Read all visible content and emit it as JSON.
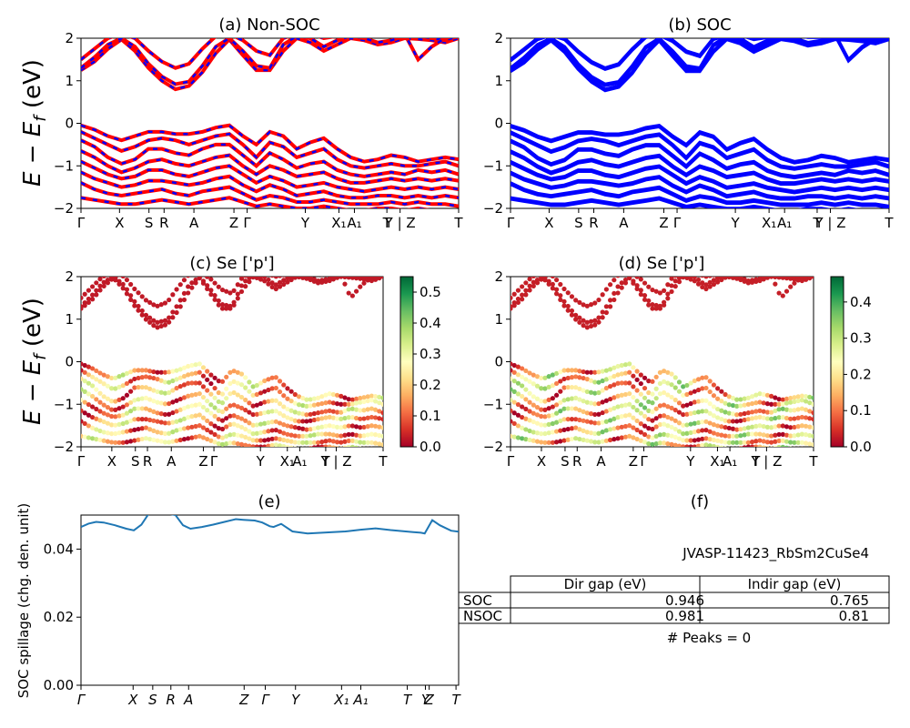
{
  "chart_data": [
    {
      "panel": "a",
      "type": "line",
      "title": "(a) Non-SOC",
      "ylabel": "E − E_f (eV)",
      "ylim": [
        -2,
        2
      ],
      "yticks": [
        2,
        1,
        0,
        -1,
        -2
      ],
      "kpath": [
        {
          "label": "Γ",
          "pos": 0.0
        },
        {
          "label": "X",
          "pos": 0.102
        },
        {
          "label": "S",
          "pos": 0.18
        },
        {
          "label": "R",
          "pos": 0.22
        },
        {
          "label": "A",
          "pos": 0.299
        },
        {
          "label": "Z",
          "pos": 0.405
        },
        {
          "label": "Γ",
          "pos": 0.44
        },
        {
          "label": "Y",
          "pos": 0.594
        },
        {
          "label": "X₁",
          "pos": 0.683
        },
        {
          "label": "A₁",
          "pos": 0.724
        },
        {
          "label": "T",
          "pos": 0.81
        },
        {
          "label": "Y | Z",
          "pos": 0.845
        },
        {
          "label": "T",
          "pos": 1.0
        }
      ],
      "series": [
        {
          "colors": [
            "#ff0000",
            "#0000ff"
          ],
          "style": "overlaid dashed"
        }
      ],
      "conduction_bands": [
        [
          1.25,
          1.45,
          1.75,
          1.97,
          1.7,
          1.3,
          1.0,
          0.8,
          0.88,
          1.2,
          1.65,
          1.97,
          1.6,
          1.25,
          1.25,
          1.7,
          2.0,
          1.9,
          1.7,
          1.85,
          2.0,
          1.95,
          1.85,
          1.9,
          2.0,
          1.98,
          1.95,
          1.9,
          2.0
        ],
        [
          1.3,
          1.55,
          1.85,
          2.0,
          1.8,
          1.4,
          1.1,
          0.92,
          0.98,
          1.35,
          1.8,
          2.0,
          1.7,
          1.35,
          1.3,
          1.85,
          2.05,
          2.0,
          1.8,
          1.95,
          2.05,
          2.0,
          1.9,
          1.95,
          2.05,
          2.05,
          2.0,
          1.95,
          2.05
        ],
        [
          1.5,
          1.75,
          2.0,
          2.1,
          2.0,
          1.7,
          1.45,
          1.3,
          1.4,
          1.75,
          2.05,
          2.1,
          1.95,
          1.7,
          1.6,
          2.0,
          2.1,
          2.1,
          2.0,
          2.05,
          2.1,
          2.1,
          2.05,
          2.05,
          2.1,
          1.5,
          1.8,
          2.0,
          2.1
        ]
      ],
      "valence_bands": [
        [
          -0.05,
          -0.15,
          -0.3,
          -0.4,
          -0.3,
          -0.2,
          -0.2,
          -0.25,
          -0.25,
          -0.2,
          -0.1,
          -0.05,
          -0.3,
          -0.5,
          -0.2,
          -0.3,
          -0.6,
          -0.45,
          -0.35,
          -0.6,
          -0.8,
          -0.9,
          -0.85,
          -0.75,
          -0.8,
          -0.9,
          -0.85,
          -0.8,
          -0.85
        ],
        [
          -0.2,
          -0.35,
          -0.5,
          -0.65,
          -0.55,
          -0.4,
          -0.35,
          -0.4,
          -0.5,
          -0.4,
          -0.3,
          -0.25,
          -0.5,
          -0.8,
          -0.45,
          -0.55,
          -0.8,
          -0.7,
          -0.6,
          -0.85,
          -1.0,
          -1.05,
          -1.0,
          -0.95,
          -1.0,
          -1.0,
          -0.95,
          -0.9,
          -1.0
        ],
        [
          -0.4,
          -0.55,
          -0.8,
          -0.95,
          -0.85,
          -0.6,
          -0.6,
          -0.7,
          -0.75,
          -0.6,
          -0.5,
          -0.5,
          -0.75,
          -1.0,
          -0.7,
          -0.85,
          -1.05,
          -0.95,
          -0.9,
          -1.1,
          -1.2,
          -1.25,
          -1.2,
          -1.15,
          -1.2,
          -1.1,
          -1.15,
          -1.1,
          -1.2
        ],
        [
          -0.65,
          -0.8,
          -1.0,
          -1.15,
          -1.05,
          -0.9,
          -0.85,
          -0.95,
          -1.0,
          -0.9,
          -0.8,
          -0.75,
          -1.0,
          -1.2,
          -1.0,
          -1.1,
          -1.25,
          -1.2,
          -1.15,
          -1.3,
          -1.4,
          -1.4,
          -1.35,
          -1.3,
          -1.35,
          -1.3,
          -1.35,
          -1.3,
          -1.35
        ],
        [
          -0.9,
          -1.05,
          -1.2,
          -1.3,
          -1.25,
          -1.1,
          -1.1,
          -1.2,
          -1.25,
          -1.15,
          -1.05,
          -1.0,
          -1.2,
          -1.4,
          -1.25,
          -1.35,
          -1.5,
          -1.45,
          -1.4,
          -1.5,
          -1.55,
          -1.6,
          -1.55,
          -1.5,
          -1.55,
          -1.5,
          -1.55,
          -1.5,
          -1.55
        ],
        [
          -1.15,
          -1.3,
          -1.4,
          -1.5,
          -1.45,
          -1.35,
          -1.35,
          -1.4,
          -1.45,
          -1.4,
          -1.3,
          -1.25,
          -1.45,
          -1.6,
          -1.45,
          -1.55,
          -1.7,
          -1.65,
          -1.6,
          -1.7,
          -1.75,
          -1.75,
          -1.7,
          -1.7,
          -1.75,
          -1.7,
          -1.75,
          -1.7,
          -1.75
        ],
        [
          -1.4,
          -1.55,
          -1.65,
          -1.7,
          -1.65,
          -1.6,
          -1.55,
          -1.65,
          -1.7,
          -1.6,
          -1.55,
          -1.5,
          -1.65,
          -1.8,
          -1.7,
          -1.75,
          -1.85,
          -1.85,
          -1.8,
          -1.85,
          -1.9,
          -1.9,
          -1.9,
          -1.85,
          -1.9,
          -1.85,
          -1.9,
          -1.9,
          -1.95
        ],
        [
          -1.75,
          -1.8,
          -1.85,
          -1.9,
          -1.9,
          -1.85,
          -1.8,
          -1.85,
          -1.9,
          -1.85,
          -1.8,
          -1.75,
          -1.85,
          -1.95,
          -1.9,
          -1.95,
          -2.0,
          -2.0,
          -1.95,
          -2.0,
          -2.05,
          -2.05,
          -2.0,
          -2.0,
          -2.05,
          -2.0,
          -2.05,
          -2.05,
          -2.1
        ]
      ]
    },
    {
      "panel": "b",
      "type": "line",
      "title": "(b) SOC",
      "ylim": [
        -2,
        2
      ],
      "yticks": [
        2,
        1,
        0,
        -1,
        -2
      ],
      "kpath": [
        {
          "label": "Γ",
          "pos": 0.0
        },
        {
          "label": "X",
          "pos": 0.102
        },
        {
          "label": "S",
          "pos": 0.18
        },
        {
          "label": "R",
          "pos": 0.22
        },
        {
          "label": "A",
          "pos": 0.299
        },
        {
          "label": "Z",
          "pos": 0.405
        },
        {
          "label": "Γ",
          "pos": 0.44
        },
        {
          "label": "Y",
          "pos": 0.594
        },
        {
          "label": "X₁",
          "pos": 0.683
        },
        {
          "label": "A₁",
          "pos": 0.724
        },
        {
          "label": "T",
          "pos": 0.81
        },
        {
          "label": "Y | Z",
          "pos": 0.845
        },
        {
          "label": "T",
          "pos": 1.0
        }
      ],
      "series": [
        {
          "colors": [
            "#0000ff"
          ],
          "style": "solid"
        }
      ]
    },
    {
      "panel": "c",
      "type": "scatter",
      "title": "(c)  Se ['p']",
      "ylabel": "E − E_f (eV)",
      "ylim": [
        -2,
        2
      ],
      "yticks": [
        2,
        1,
        0,
        -1,
        -2
      ],
      "colorbar": {
        "min": 0.0,
        "max": 0.55,
        "ticks": [
          0.5,
          0.4,
          0.3,
          0.2,
          0.1,
          0.0
        ],
        "colormap": "RdYlGn"
      },
      "kpath": [
        {
          "label": "Γ",
          "pos": 0.0
        },
        {
          "label": "X",
          "pos": 0.102
        },
        {
          "label": "S",
          "pos": 0.18
        },
        {
          "label": "R",
          "pos": 0.22
        },
        {
          "label": "A",
          "pos": 0.299
        },
        {
          "label": "Z",
          "pos": 0.405
        },
        {
          "label": "Γ",
          "pos": 0.44
        },
        {
          "label": "Y",
          "pos": 0.594
        },
        {
          "label": "X₁",
          "pos": 0.683
        },
        {
          "label": "A₁",
          "pos": 0.724
        },
        {
          "label": "T",
          "pos": 0.81
        },
        {
          "label": "Y | Z",
          "pos": 0.845
        },
        {
          "label": "T",
          "pos": 1.0
        }
      ]
    },
    {
      "panel": "d",
      "type": "scatter",
      "title": "(d) Se ['p']",
      "ylim": [
        -2,
        2
      ],
      "yticks": [
        2,
        1,
        0,
        -1,
        -2
      ],
      "colorbar": {
        "min": 0.0,
        "max": 0.47,
        "ticks": [
          0.4,
          0.3,
          0.2,
          0.1,
          0.0
        ],
        "colormap": "RdYlGn"
      },
      "kpath": [
        {
          "label": "Γ",
          "pos": 0.0
        },
        {
          "label": "X",
          "pos": 0.102
        },
        {
          "label": "S",
          "pos": 0.18
        },
        {
          "label": "R",
          "pos": 0.22
        },
        {
          "label": "A",
          "pos": 0.299
        },
        {
          "label": "Z",
          "pos": 0.405
        },
        {
          "label": "Γ",
          "pos": 0.44
        },
        {
          "label": "Y",
          "pos": 0.594
        },
        {
          "label": "X₁",
          "pos": 0.683
        },
        {
          "label": "A₁",
          "pos": 0.724
        },
        {
          "label": "T",
          "pos": 0.81
        },
        {
          "label": "Y | Z",
          "pos": 0.845
        },
        {
          "label": "T",
          "pos": 1.0
        }
      ]
    },
    {
      "panel": "e",
      "type": "line",
      "title": "(e)",
      "ylabel": "SOC spillage (chg. den. unit)",
      "ylim": [
        0.0,
        0.05
      ],
      "yticks": [
        0.0,
        0.02,
        0.04
      ],
      "ytick_labels": [
        "0.00",
        "0.02",
        "0.04"
      ],
      "kpath": [
        {
          "label": "Γ",
          "pos": 0.0
        },
        {
          "label": "X",
          "pos": 0.138
        },
        {
          "label": "S",
          "pos": 0.19
        },
        {
          "label": "R",
          "pos": 0.238
        },
        {
          "label": "A",
          "pos": 0.285
        },
        {
          "label": "Z",
          "pos": 0.432
        },
        {
          "label": "Γ",
          "pos": 0.488
        },
        {
          "label": "Y",
          "pos": 0.568
        },
        {
          "label": "X₁",
          "pos": 0.69
        },
        {
          "label": "A₁",
          "pos": 0.741
        },
        {
          "label": "T",
          "pos": 0.864
        },
        {
          "label": "Y",
          "pos": 0.912
        },
        {
          "label": "Z",
          "pos": 0.922
        },
        {
          "label": "T",
          "pos": 0.993
        }
      ],
      "series": [
        {
          "color": "#1f77b4",
          "x": [
            0.0,
            0.02,
            0.04,
            0.06,
            0.09,
            0.12,
            0.14,
            0.16,
            0.18,
            0.2,
            0.22,
            0.25,
            0.27,
            0.29,
            0.32,
            0.35,
            0.38,
            0.41,
            0.43,
            0.46,
            0.48,
            0.5,
            0.51,
            0.53,
            0.56,
            0.6,
            0.65,
            0.7,
            0.74,
            0.78,
            0.82,
            0.86,
            0.88,
            0.9,
            0.91,
            0.93,
            0.95,
            0.98,
            1.0
          ],
          "y": [
            0.0465,
            0.0475,
            0.048,
            0.0478,
            0.047,
            0.046,
            0.0455,
            0.0472,
            0.0505,
            0.0508,
            0.0506,
            0.05,
            0.047,
            0.046,
            0.0465,
            0.0472,
            0.048,
            0.0488,
            0.0486,
            0.0484,
            0.0478,
            0.0467,
            0.0465,
            0.0474,
            0.0452,
            0.0446,
            0.0449,
            0.0452,
            0.0457,
            0.0461,
            0.0456,
            0.0452,
            0.045,
            0.0448,
            0.0446,
            0.0485,
            0.047,
            0.0454,
            0.0451
          ]
        }
      ]
    }
  ],
  "panel_f": {
    "title": "(f)",
    "material_id": "JVASP-11423_RbSm2CuSe4",
    "table": {
      "col_headers": [
        "Dir gap (eV)",
        "Indir gap (eV)"
      ],
      "rows": [
        {
          "label": "SOC",
          "dir_gap": "0.946",
          "indir_gap": "0.765"
        },
        {
          "label": "NSOC",
          "dir_gap": "0.981",
          "indir_gap": "0.81"
        }
      ]
    },
    "peaks_text": "# Peaks = 0"
  }
}
